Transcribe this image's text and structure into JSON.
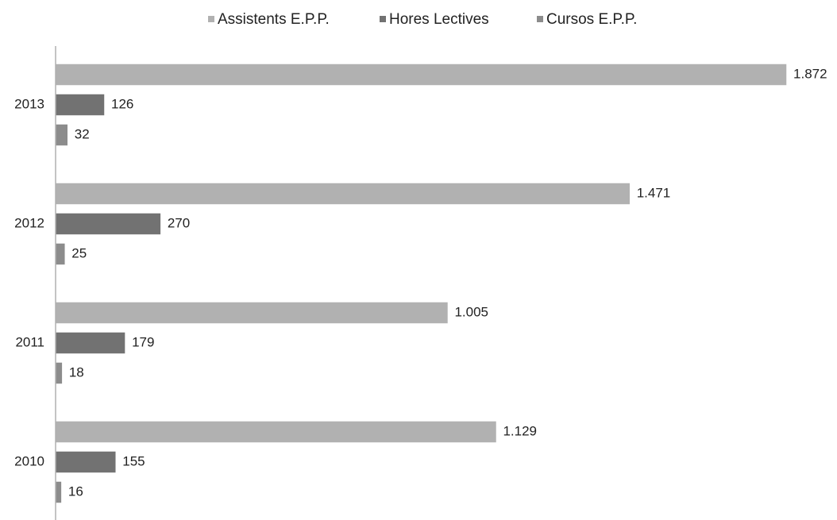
{
  "chart_data": {
    "type": "hbar",
    "categories": [
      "2013",
      "2012",
      "2011",
      "2010"
    ],
    "series": [
      {
        "name": "Assistents E.P.P.",
        "color": "#b1b1b1",
        "values": [
          1872,
          1471,
          1005,
          1129
        ],
        "value_labels": [
          "1.872",
          "1.471",
          "1.005",
          "1.129"
        ]
      },
      {
        "name": "Hores Lectives",
        "color": "#727272",
        "values": [
          126,
          270,
          179,
          155
        ]
      },
      {
        "name": "Cursos E.P.P.",
        "color": "#8c8c8c",
        "values": [
          32,
          25,
          18,
          16
        ]
      }
    ],
    "xlim": [
      0,
      2000
    ],
    "legend": "top"
  }
}
